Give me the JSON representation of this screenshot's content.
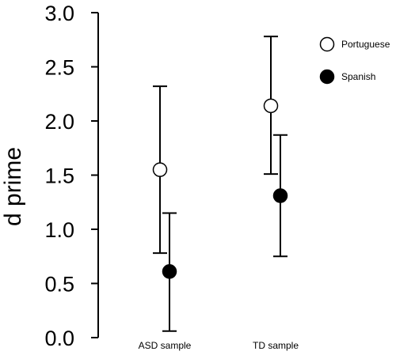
{
  "chart_data": {
    "type": "scatter",
    "title": "",
    "xlabel": "",
    "ylabel": "d prime",
    "ylim": [
      0,
      3
    ],
    "yticks": [
      "0.0",
      "0.5",
      "1.0",
      "1.5",
      "2.0",
      "2.5",
      "3.0"
    ],
    "categories": [
      "ASD sample",
      "TD sample"
    ],
    "grid": false,
    "legend_position": "top-right",
    "series": [
      {
        "name": "Portuguese",
        "marker": "open-circle",
        "values": [
          1.55,
          2.14
        ],
        "error_low": [
          0.78,
          1.51
        ],
        "error_high": [
          2.32,
          2.78
        ]
      },
      {
        "name": "Spanish",
        "marker": "filled-circle",
        "values": [
          0.61,
          1.31
        ],
        "error_low": [
          0.06,
          0.75
        ],
        "error_high": [
          1.15,
          1.87
        ]
      }
    ],
    "colors": {
      "axis": "#000000",
      "marker_stroke": "#000000",
      "open_fill": "#ffffff",
      "filled_fill": "#000000"
    }
  }
}
